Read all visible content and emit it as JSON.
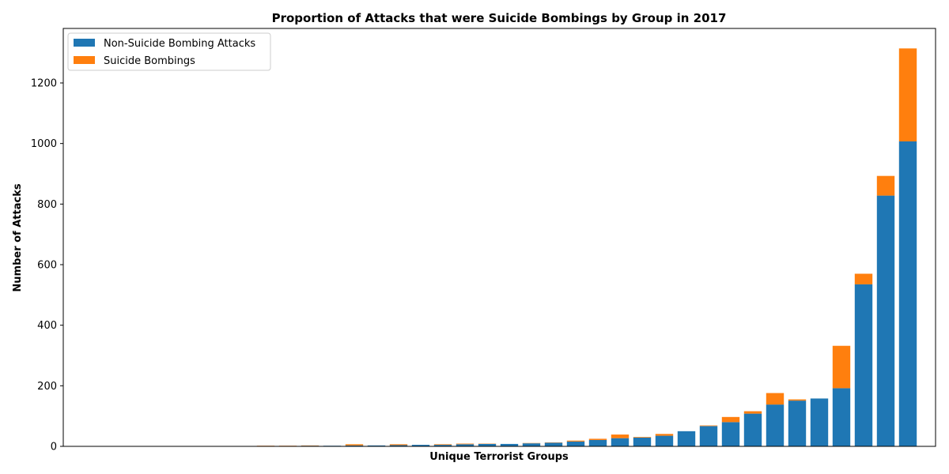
{
  "chart_data": {
    "type": "bar",
    "stacked": true,
    "title": "Proportion of Attacks that were Suicide Bombings by Group in 2017",
    "xlabel": "Unique Terrorist Groups",
    "ylabel": "Number of Attacks",
    "ylim": [
      0,
      1380
    ],
    "yticks": [
      0,
      200,
      400,
      600,
      800,
      1000,
      1200
    ],
    "grid": false,
    "legend_position": "top-left",
    "series": [
      {
        "name": "Non-Suicide Bombing Attacks",
        "color": "#1f77b4",
        "values": [
          0,
          0,
          0,
          0,
          0,
          0,
          0,
          0,
          1,
          1,
          2,
          2,
          3,
          3,
          4,
          5,
          5,
          7,
          8,
          8,
          10,
          12,
          16,
          21,
          27,
          29,
          35,
          50,
          67,
          80,
          108,
          138,
          151,
          158,
          192,
          535,
          828,
          1007
        ]
      },
      {
        "name": "Suicide Bombings",
        "color": "#ff7f0e",
        "values": [
          0,
          0,
          0,
          0,
          0,
          0,
          0,
          0,
          1,
          1,
          1,
          0,
          4,
          0,
          3,
          0,
          2,
          2,
          1,
          0,
          1,
          1,
          3,
          4,
          12,
          2,
          6,
          0,
          2,
          17,
          8,
          38,
          4,
          0,
          140,
          35,
          65,
          307
        ]
      }
    ]
  }
}
